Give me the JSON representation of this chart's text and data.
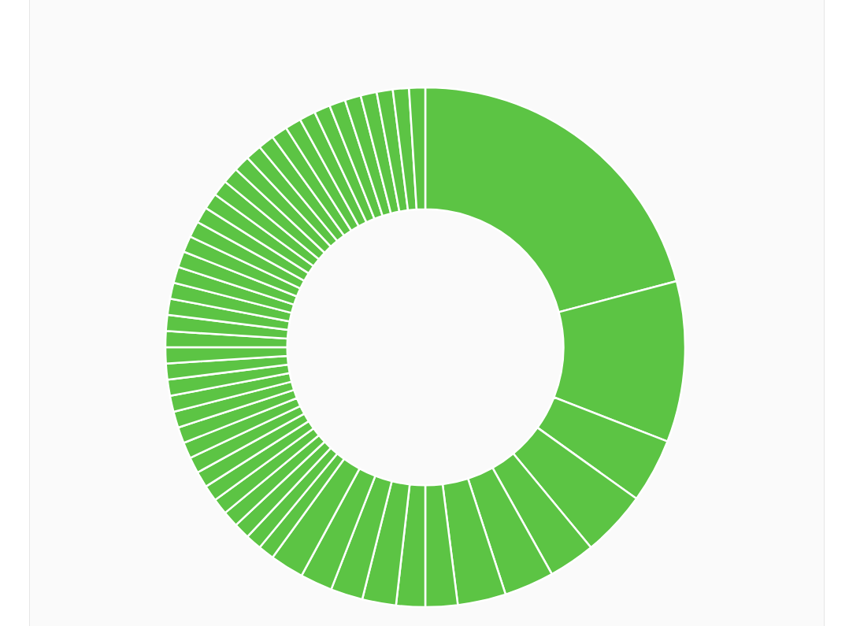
{
  "chart_data": {
    "type": "donut",
    "categories": [
      null,
      null,
      null,
      null,
      null,
      null,
      null,
      null,
      null,
      null,
      null,
      null,
      null,
      null,
      null,
      null,
      null,
      null,
      null,
      null,
      null,
      null,
      null,
      null,
      null,
      null,
      null,
      null,
      null,
      null,
      null,
      null,
      null,
      null,
      null,
      null,
      null,
      null,
      null,
      null,
      null,
      null,
      null,
      null,
      null,
      null,
      null,
      null,
      null,
      null,
      null,
      null,
      null
    ],
    "values": [
      20.9,
      10.0,
      4.0,
      4.1,
      2.9,
      3.1,
      3.0,
      2.0,
      1.8,
      2.1,
      2.0,
      2.0,
      2.1,
      1.0,
      1.0,
      1.0,
      1.0,
      1.0,
      1.0,
      1.0,
      1.0,
      1.0,
      1.0,
      1.0,
      1.0,
      1.0,
      1.0,
      1.0,
      1.0,
      1.0,
      1.0,
      1.0,
      1.0,
      1.0,
      1.0,
      1.0,
      1.0,
      1.0,
      1.0,
      1.0,
      1.0,
      1.0,
      1.0,
      1.0,
      1.0,
      1.0,
      1.0,
      1.0,
      1.0,
      1.0,
      1.0,
      1.0,
      1.0
    ],
    "colors": [
      "#5cc444",
      "#5cc444",
      "#5cc444",
      "#5cc444",
      "#5cc444",
      "#5cc444",
      "#5cc444",
      "#5cc444",
      "#5cc444",
      "#5cc444",
      "#5cc444",
      "#5cc444",
      "#5cc444",
      "#5cc444",
      "#5cc444",
      "#5cc444",
      "#5cc444",
      "#5cc444",
      "#5cc444",
      "#5cc444",
      "#5cc444",
      "#5cc444",
      "#5cc444",
      "#5cc444",
      "#5cc444",
      "#5cc444",
      "#5cc444",
      "#5cc444",
      "#5cc444",
      "#5cc444",
      "#5cc444",
      "#5cc444",
      "#5cc444",
      "#5cc444",
      "#5cc444",
      "#5cc444",
      "#5cc444",
      "#5cc444",
      "#5cc444",
      "#5cc444",
      "#5cc444",
      "#5cc444",
      "#5cc444",
      "#5cc444",
      "#5cc444",
      "#5cc444",
      "#5cc444",
      "#5cc444",
      "#5cc444",
      "#5cc444",
      "#5cc444",
      "#5cc444",
      "#5cc444"
    ]
  }
}
